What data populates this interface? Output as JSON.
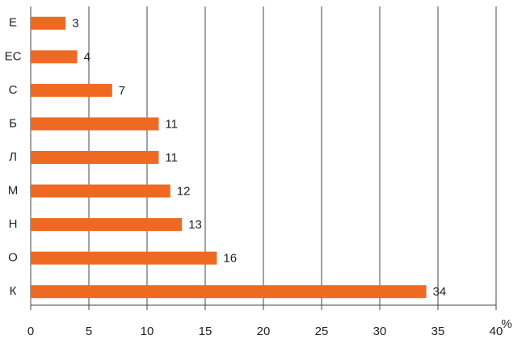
{
  "chart_data": {
    "type": "barh",
    "categories": [
      "Е",
      "ЕС",
      "С",
      "Б",
      "Л",
      "М",
      "Н",
      "О",
      "К"
    ],
    "values": [
      3,
      4,
      7,
      11,
      11,
      12,
      13,
      16,
      34
    ],
    "color": "#ee6a22",
    "xlim": [
      0,
      40
    ],
    "xticks": [
      0,
      5,
      10,
      15,
      20,
      25,
      30,
      35,
      40
    ],
    "x_label": "%",
    "grid": true
  }
}
